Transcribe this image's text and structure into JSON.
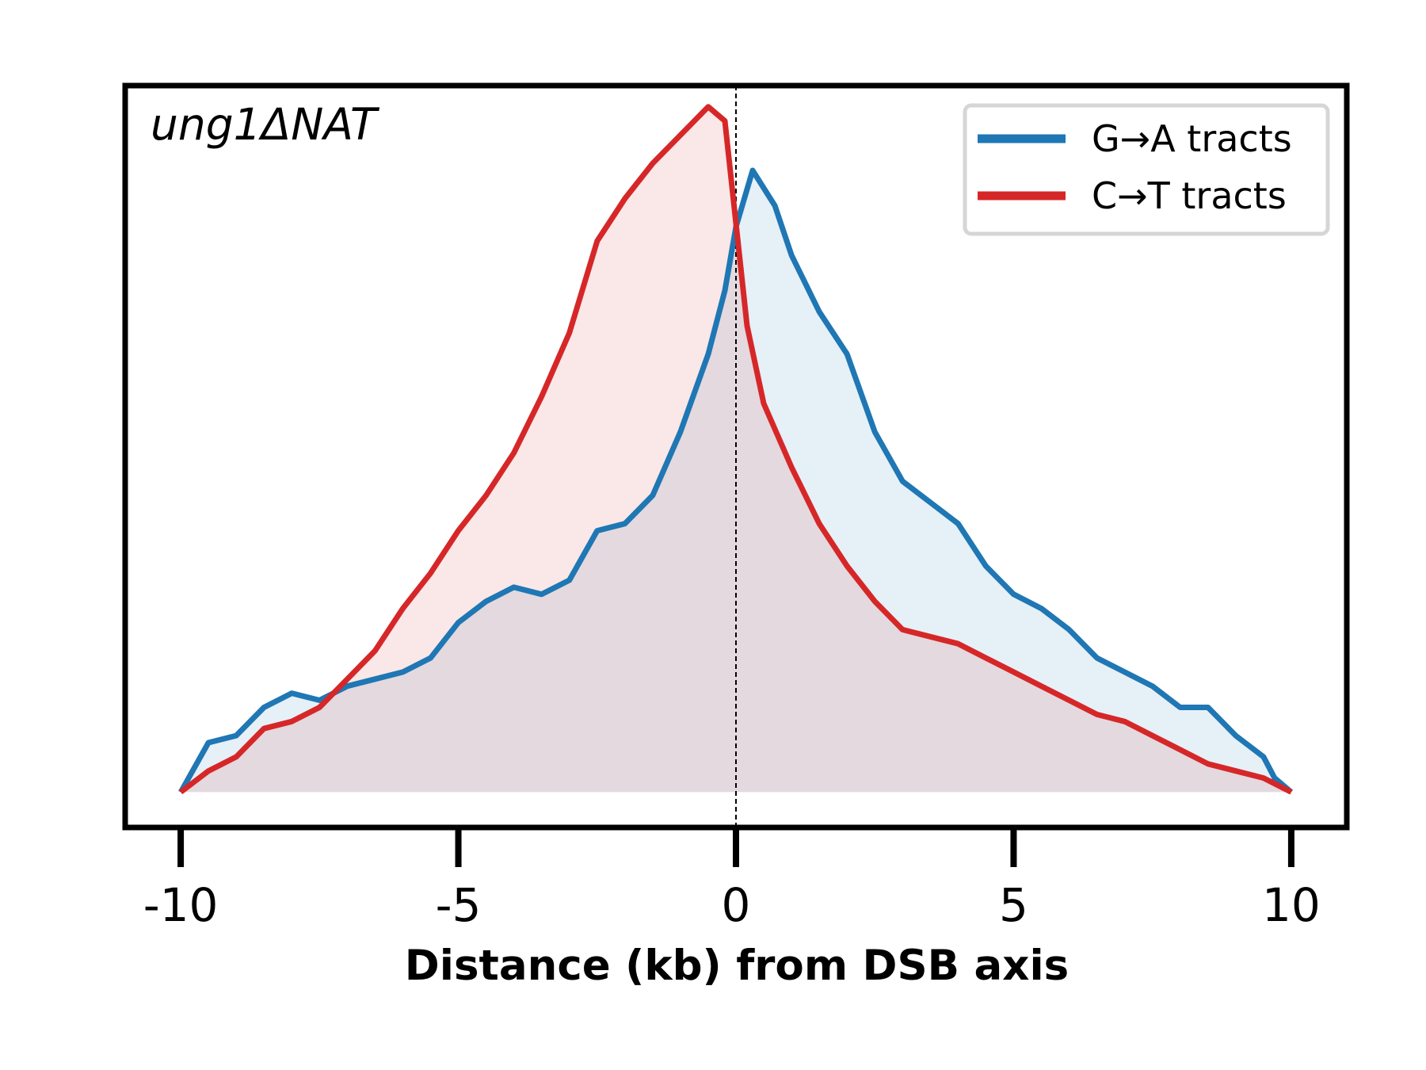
{
  "chart_data": {
    "type": "area",
    "title": "",
    "panel_label": "ung1ΔNAT",
    "xlabel": "Distance (kb) from DSB axis",
    "ylabel": "",
    "xlim": [
      -11.0,
      11.0
    ],
    "ylim": [
      -0.05,
      1.0
    ],
    "xticks": [
      -10,
      -5,
      0,
      5,
      10
    ],
    "xtick_labels": [
      "-10",
      "-5",
      "0",
      "5",
      "10"
    ],
    "yticks_visible": false,
    "grid": false,
    "reference_line_x": 0,
    "legend_position": "top-right",
    "series": [
      {
        "name": "G→A tracts",
        "color": "#1f77b4",
        "fill_color": "#dde8f4",
        "x": [
          -10,
          -9.5,
          -9,
          -8.5,
          -8,
          -7.5,
          -7,
          -6.5,
          -6,
          -5.5,
          -5,
          -4.5,
          -4,
          -3.5,
          -3,
          -2.5,
          -2,
          -1.5,
          -1,
          -0.5,
          -0.2,
          0,
          0.3,
          0.7,
          1,
          1.5,
          2,
          2.5,
          3,
          3.5,
          4,
          4.5,
          5,
          5.5,
          6,
          6.5,
          7,
          7.5,
          8,
          8.5,
          9,
          9.5,
          9.7,
          10
        ],
        "y": [
          0.0,
          0.07,
          0.08,
          0.12,
          0.14,
          0.13,
          0.15,
          0.16,
          0.17,
          0.19,
          0.24,
          0.27,
          0.29,
          0.28,
          0.3,
          0.37,
          0.38,
          0.42,
          0.51,
          0.62,
          0.71,
          0.8,
          0.88,
          0.83,
          0.76,
          0.68,
          0.62,
          0.51,
          0.44,
          0.41,
          0.38,
          0.32,
          0.28,
          0.26,
          0.23,
          0.19,
          0.17,
          0.15,
          0.12,
          0.12,
          0.08,
          0.05,
          0.02,
          0.0
        ]
      },
      {
        "name": "C→T tracts",
        "color": "#d62728",
        "fill_color": "#f6dcdc",
        "x": [
          -10,
          -9.5,
          -9,
          -8.5,
          -8,
          -7.5,
          -7,
          -6.5,
          -6,
          -5.5,
          -5,
          -4.5,
          -4,
          -3.5,
          -3,
          -2.5,
          -2,
          -1.5,
          -1,
          -0.5,
          -0.2,
          0.2,
          0.5,
          1,
          1.5,
          2,
          2.5,
          3,
          3.5,
          4,
          4.5,
          5,
          5.5,
          6,
          6.5,
          7,
          7.5,
          8,
          8.5,
          9,
          9.5,
          10
        ],
        "y": [
          0.0,
          0.03,
          0.05,
          0.09,
          0.1,
          0.12,
          0.16,
          0.2,
          0.26,
          0.31,
          0.37,
          0.42,
          0.48,
          0.56,
          0.65,
          0.78,
          0.84,
          0.89,
          0.93,
          0.97,
          0.95,
          0.66,
          0.55,
          0.46,
          0.38,
          0.32,
          0.27,
          0.23,
          0.22,
          0.21,
          0.19,
          0.17,
          0.15,
          0.13,
          0.11,
          0.1,
          0.08,
          0.06,
          0.04,
          0.03,
          0.02,
          0.0
        ]
      }
    ]
  }
}
